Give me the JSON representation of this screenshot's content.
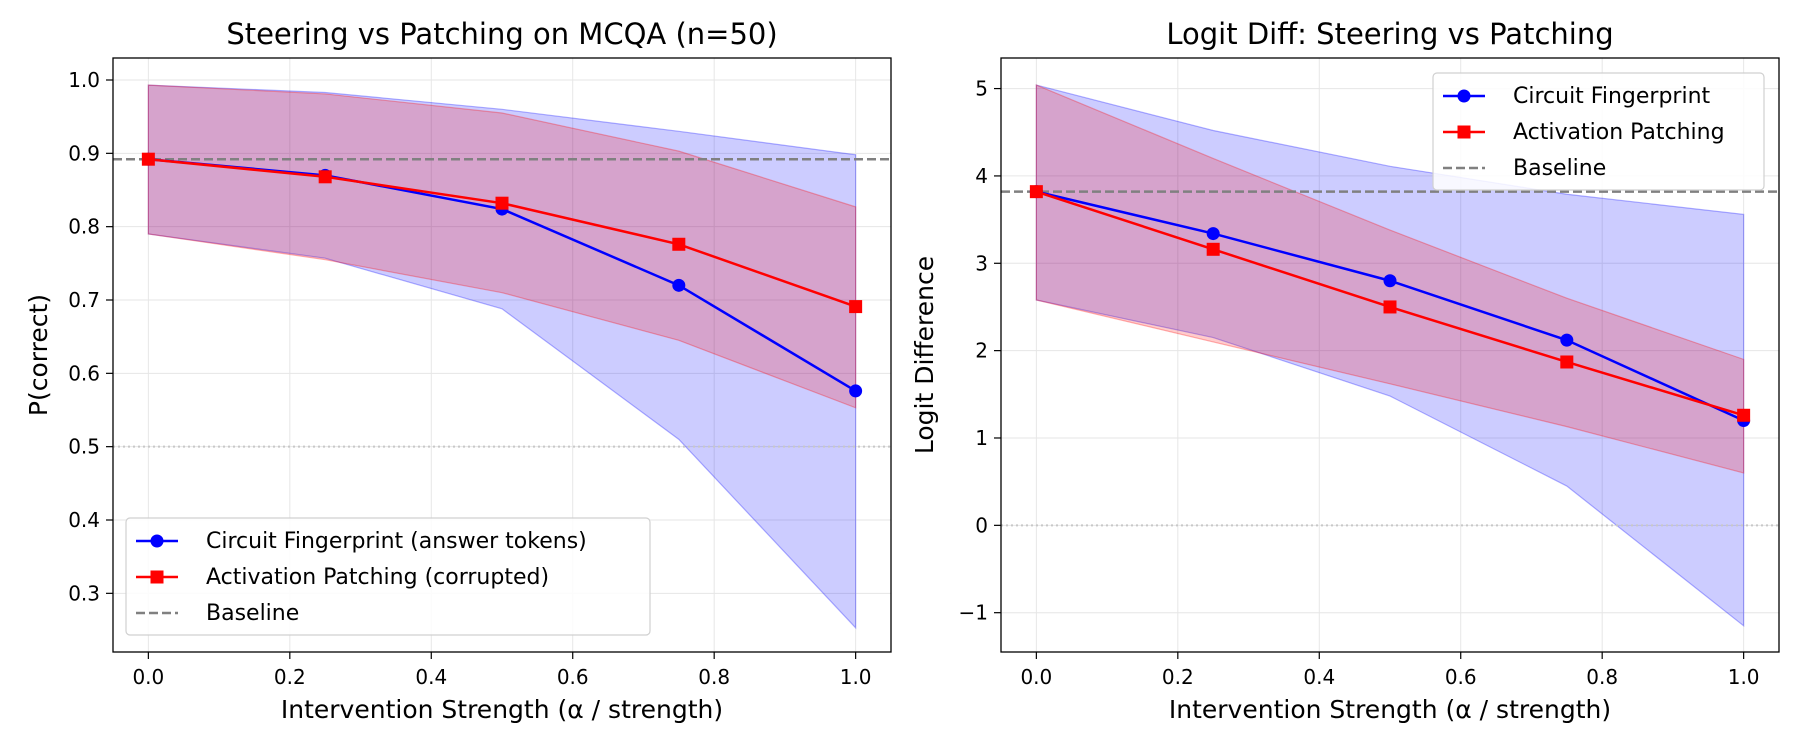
{
  "colors": {
    "fingerprint": "#0000ff",
    "patching": "#ff0000",
    "baseline": "#808080",
    "reference": "#c8c8c8",
    "grid": "#e6e6e6",
    "band_fingerprint": "#0000ff",
    "band_patching": "#ff0000"
  },
  "chart_data": [
    {
      "type": "line",
      "title": "Steering vs Patching on MCQA (n=50)",
      "xlabel": "Intervention Strength (α / strength)",
      "ylabel": "P(correct)",
      "xlim": [
        -0.05,
        1.05
      ],
      "ylim": [
        0.22,
        1.03
      ],
      "xticks": [
        0.0,
        0.2,
        0.4,
        0.6,
        0.8,
        1.0
      ],
      "xtick_labels": [
        "0.0",
        "0.2",
        "0.4",
        "0.6",
        "0.8",
        "1.0"
      ],
      "yticks": [
        0.3,
        0.4,
        0.5,
        0.6,
        0.7,
        0.8,
        0.9,
        1.0
      ],
      "ytick_labels": [
        "0.3",
        "0.4",
        "0.5",
        "0.6",
        "0.7",
        "0.8",
        "0.9",
        "1.0"
      ],
      "grid": true,
      "legend_position": "lower-left",
      "baseline": 0.892,
      "reference_line": 0.5,
      "x": [
        0.0,
        0.25,
        0.5,
        0.75,
        1.0
      ],
      "series": [
        {
          "key": "fingerprint",
          "name": "Circuit Fingerprint (answer tokens)",
          "marker": "circle",
          "values": [
            0.892,
            0.87,
            0.824,
            0.72,
            0.576
          ],
          "band_low": [
            0.79,
            0.757,
            0.688,
            0.51,
            0.253
          ],
          "band_high": [
            0.993,
            0.983,
            0.96,
            0.93,
            0.898
          ]
        },
        {
          "key": "patching",
          "name": "Activation Patching (corrupted)",
          "marker": "square",
          "values": [
            0.892,
            0.868,
            0.832,
            0.776,
            0.691
          ],
          "band_low": [
            0.79,
            0.755,
            0.71,
            0.645,
            0.553
          ],
          "band_high": [
            0.993,
            0.981,
            0.955,
            0.903,
            0.827
          ]
        }
      ],
      "legend": [
        "Circuit Fingerprint (answer tokens)",
        "Activation Patching (corrupted)",
        "Baseline"
      ]
    },
    {
      "type": "line",
      "title": "Logit Diff: Steering vs Patching",
      "xlabel": "Intervention Strength (α / strength)",
      "ylabel": "Logit Difference",
      "xlim": [
        -0.05,
        1.05
      ],
      "ylim": [
        -1.45,
        5.35
      ],
      "xticks": [
        0.0,
        0.2,
        0.4,
        0.6,
        0.8,
        1.0
      ],
      "xtick_labels": [
        "0.0",
        "0.2",
        "0.4",
        "0.6",
        "0.8",
        "1.0"
      ],
      "yticks": [
        -1,
        0,
        1,
        2,
        3,
        4,
        5
      ],
      "ytick_labels": [
        "−1",
        "0",
        "1",
        "2",
        "3",
        "4",
        "5"
      ],
      "grid": true,
      "legend_position": "upper-right",
      "baseline": 3.82,
      "reference_line": 0,
      "x": [
        0.0,
        0.25,
        0.5,
        0.75,
        1.0
      ],
      "series": [
        {
          "key": "fingerprint",
          "name": "Circuit Fingerprint",
          "marker": "circle",
          "values": [
            3.82,
            3.34,
            2.8,
            2.12,
            1.2
          ],
          "band_low": [
            2.58,
            2.15,
            1.48,
            0.45,
            -1.15
          ],
          "band_high": [
            5.04,
            4.52,
            4.11,
            3.79,
            3.56
          ]
        },
        {
          "key": "patching",
          "name": "Activation Patching",
          "marker": "square",
          "values": [
            3.82,
            3.16,
            2.5,
            1.87,
            1.26
          ],
          "band_low": [
            2.58,
            2.1,
            1.62,
            1.13,
            0.6
          ],
          "band_high": [
            5.04,
            4.2,
            3.38,
            2.6,
            1.9
          ]
        }
      ],
      "legend": [
        "Circuit Fingerprint",
        "Activation Patching",
        "Baseline"
      ]
    }
  ]
}
